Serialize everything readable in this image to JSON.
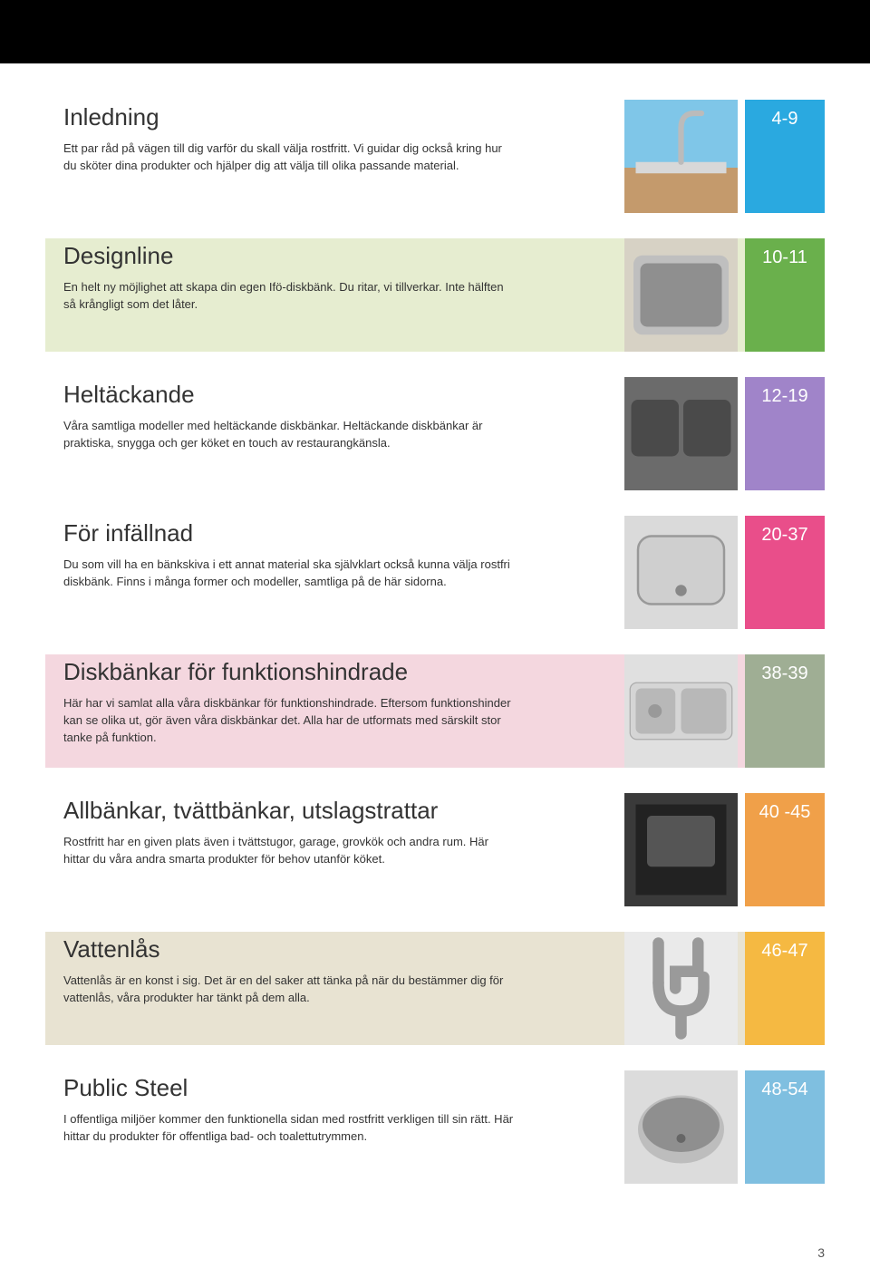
{
  "page_number": "3",
  "sections": [
    {
      "title": "Inledning",
      "body": "Ett par råd på vägen till dig varför du skall välja rostfritt. Vi guidar dig också kring hur du sköter dina produkter och hjälper dig att välja till olika passande material.",
      "page_range": "4-9",
      "page_color": "#2aa9e0",
      "thumb_bg": "#7fc6e8"
    },
    {
      "title": "Designline",
      "body": "En helt ny möjlighet att skapa din egen Ifö-diskbänk. Du ritar, vi tillverkar. Inte hälften så krångligt som det låter.",
      "page_range": "10-11",
      "page_color": "#6ab04c",
      "thumb_bg": "#d7d2c5"
    },
    {
      "title": "Heltäckande",
      "body": "Våra samtliga modeller med heltäckande diskbänkar. Heltäckande diskbänkar är praktiska, snygga och ger köket en touch av restaurangkänsla.",
      "page_range": "12-19",
      "page_color": "#a084c9",
      "thumb_bg": "#6b6b6b"
    },
    {
      "title": "För infällnad",
      "body": "Du som vill ha en bänkskiva i ett annat material ska självklart också kunna välja rostfri diskbänk. Finns i många former och modeller, samtliga på de här sidorna.",
      "page_range": "20-37",
      "page_color": "#e94e8a",
      "thumb_bg": "#dadada"
    },
    {
      "title": "Diskbänkar för funktionshindrade",
      "body": "Här har vi samlat alla våra diskbänkar för funktionshindrade. Eftersom funktionshinder kan se olika ut, gör även våra diskbänkar det. Alla har de utformats med särskilt stor tanke på funktion.",
      "page_range": "38-39",
      "page_color": "#9fae94",
      "thumb_bg": "#e0e0e0"
    },
    {
      "title": "Allbänkar, tvättbänkar, utslagstrattar",
      "body": "Rostfritt har en given plats även i tvättstugor, garage, grovkök och andra rum. Här hittar du våra andra smarta produkter för behov utanför köket.",
      "page_range": "40 -45",
      "page_color": "#f0a049",
      "thumb_bg": "#3a3a3a"
    },
    {
      "title": "Vattenlås",
      "body": "Vattenlås är en konst i sig. Det är en del saker att tänka på när du bestämmer dig för vattenlås, våra produkter har tänkt på dem alla.",
      "page_range": "46-47",
      "page_color": "#f5b942",
      "thumb_bg": "#eaeaea"
    },
    {
      "title": "Public Steel",
      "body": "I offentliga miljöer kommer den funktionella sidan med rostfritt verkligen till sin rätt. Här hittar du produkter för offentliga bad- och toalettutrymmen.",
      "page_range": "48-54",
      "page_color": "#7fbfe0",
      "thumb_bg": "#dcdcdc"
    }
  ],
  "text_bg_colors": [
    "#ffffff",
    "#e6edd0",
    "#ffffff",
    "#ffffff",
    "#f4d7df",
    "#ffffff",
    "#e8e3d2",
    "#ffffff"
  ]
}
